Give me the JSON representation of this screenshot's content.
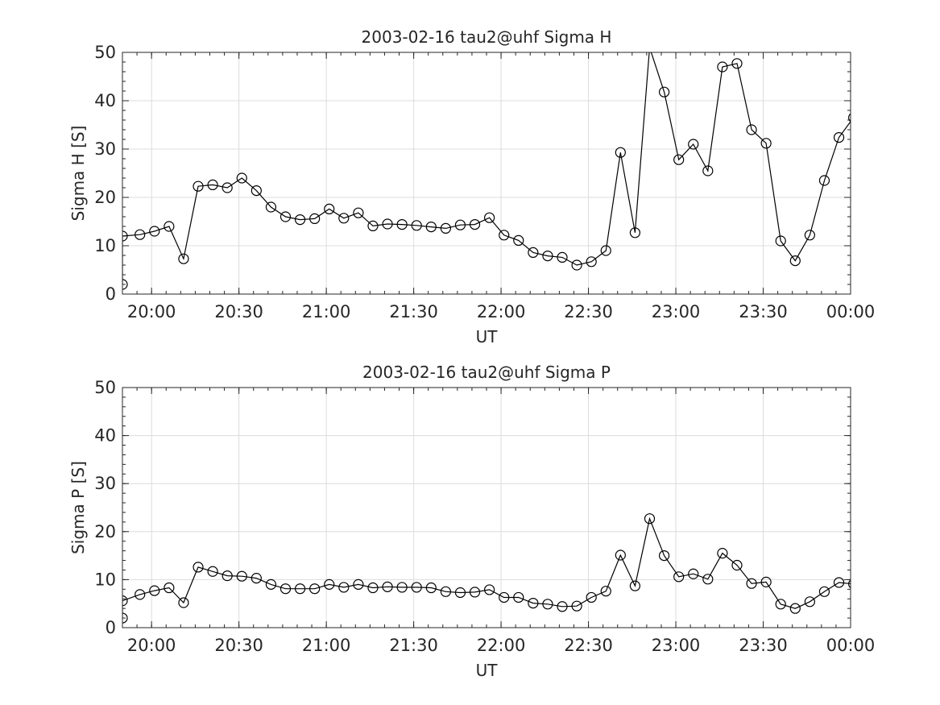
{
  "chart_data": [
    {
      "type": "line",
      "title": "2003-02-16  tau2@uhf Sigma H",
      "xlabel": "UT",
      "ylabel": "Sigma H [S]",
      "xlim": [
        "19:50",
        "00:00"
      ],
      "ylim": [
        0,
        50
      ],
      "yticks": [
        0,
        10,
        20,
        30,
        40,
        50
      ],
      "xticks": [
        "20:00",
        "20:30",
        "21:00",
        "21:30",
        "22:00",
        "22:30",
        "23:00",
        "23:30",
        "00:00"
      ],
      "grid": true,
      "marker": "open-circle",
      "color": "#000000",
      "series": [
        {
          "x": [
            "19:50",
            "19:50",
            "19:56",
            "20:01",
            "20:06",
            "20:11",
            "20:16",
            "20:21",
            "20:26",
            "20:31",
            "20:36",
            "20:41",
            "20:46",
            "20:51",
            "20:56",
            "21:01",
            "21:06",
            "21:11",
            "21:16",
            "21:21",
            "21:26",
            "21:31",
            "21:36",
            "21:41",
            "21:46",
            "21:51",
            "21:56",
            "22:01",
            "22:06",
            "22:11",
            "22:16",
            "22:21",
            "22:26",
            "22:31",
            "22:36",
            "22:41",
            "22:46",
            "22:51",
            "22:56",
            "23:01",
            "23:06",
            "23:11",
            "23:16",
            "23:21",
            "23:26",
            "23:31",
            "23:36",
            "23:41",
            "23:46",
            "23:51",
            "23:56",
            "00:01"
          ],
          "y": [
            2,
            12,
            12.3,
            13,
            14,
            7.3,
            22.3,
            22.6,
            22,
            24,
            21.4,
            18,
            16,
            15.4,
            15.6,
            17.6,
            15.7,
            16.8,
            14.1,
            14.5,
            14.4,
            14.2,
            13.9,
            13.6,
            14.3,
            14.4,
            15.8,
            12.2,
            11.1,
            8.6,
            7.9,
            7.6,
            6,
            6.7,
            9,
            29.3,
            12.7,
            51,
            41.8,
            27.8,
            31,
            25.5,
            47,
            47.7,
            34,
            31.2,
            11,
            6.9,
            12.2,
            23.5,
            32.4,
            36.5
          ]
        }
      ]
    },
    {
      "type": "line",
      "title": "2003-02-16  tau2@uhf Sigma P",
      "xlabel": "UT",
      "ylabel": "Sigma P [S]",
      "xlim": [
        "19:50",
        "00:00"
      ],
      "ylim": [
        0,
        50
      ],
      "yticks": [
        0,
        10,
        20,
        30,
        40,
        50
      ],
      "xticks": [
        "20:00",
        "20:30",
        "21:00",
        "21:30",
        "22:00",
        "22:30",
        "23:00",
        "23:30",
        "00:00"
      ],
      "grid": true,
      "marker": "open-circle",
      "color": "#000000",
      "series": [
        {
          "x": [
            "19:50",
            "19:50",
            "19:56",
            "20:01",
            "20:06",
            "20:11",
            "20:16",
            "20:21",
            "20:26",
            "20:31",
            "20:36",
            "20:41",
            "20:46",
            "20:51",
            "20:56",
            "21:01",
            "21:06",
            "21:11",
            "21:16",
            "21:21",
            "21:26",
            "21:31",
            "21:36",
            "21:41",
            "21:46",
            "21:51",
            "21:56",
            "22:01",
            "22:06",
            "22:11",
            "22:16",
            "22:21",
            "22:26",
            "22:31",
            "22:36",
            "22:41",
            "22:46",
            "22:51",
            "22:56",
            "23:01",
            "23:06",
            "23:11",
            "23:16",
            "23:21",
            "23:26",
            "23:31",
            "23:36",
            "23:41",
            "23:46",
            "23:51",
            "23:56",
            "00:01"
          ],
          "y": [
            2,
            5.6,
            6.9,
            7.7,
            8.3,
            5.2,
            12.6,
            11.7,
            10.8,
            10.7,
            10.3,
            9,
            8.1,
            8.1,
            8.1,
            9,
            8.4,
            9,
            8.3,
            8.5,
            8.4,
            8.4,
            8.3,
            7.5,
            7.3,
            7.4,
            7.9,
            6.3,
            6.3,
            5.1,
            4.9,
            4.4,
            4.5,
            6.3,
            7.6,
            15.1,
            8.7,
            22.7,
            15,
            10.6,
            11.2,
            10.1,
            15.5,
            13,
            9.2,
            9.5,
            4.9,
            4,
            5.4,
            7.5,
            9.4,
            9.1
          ]
        }
      ]
    }
  ]
}
